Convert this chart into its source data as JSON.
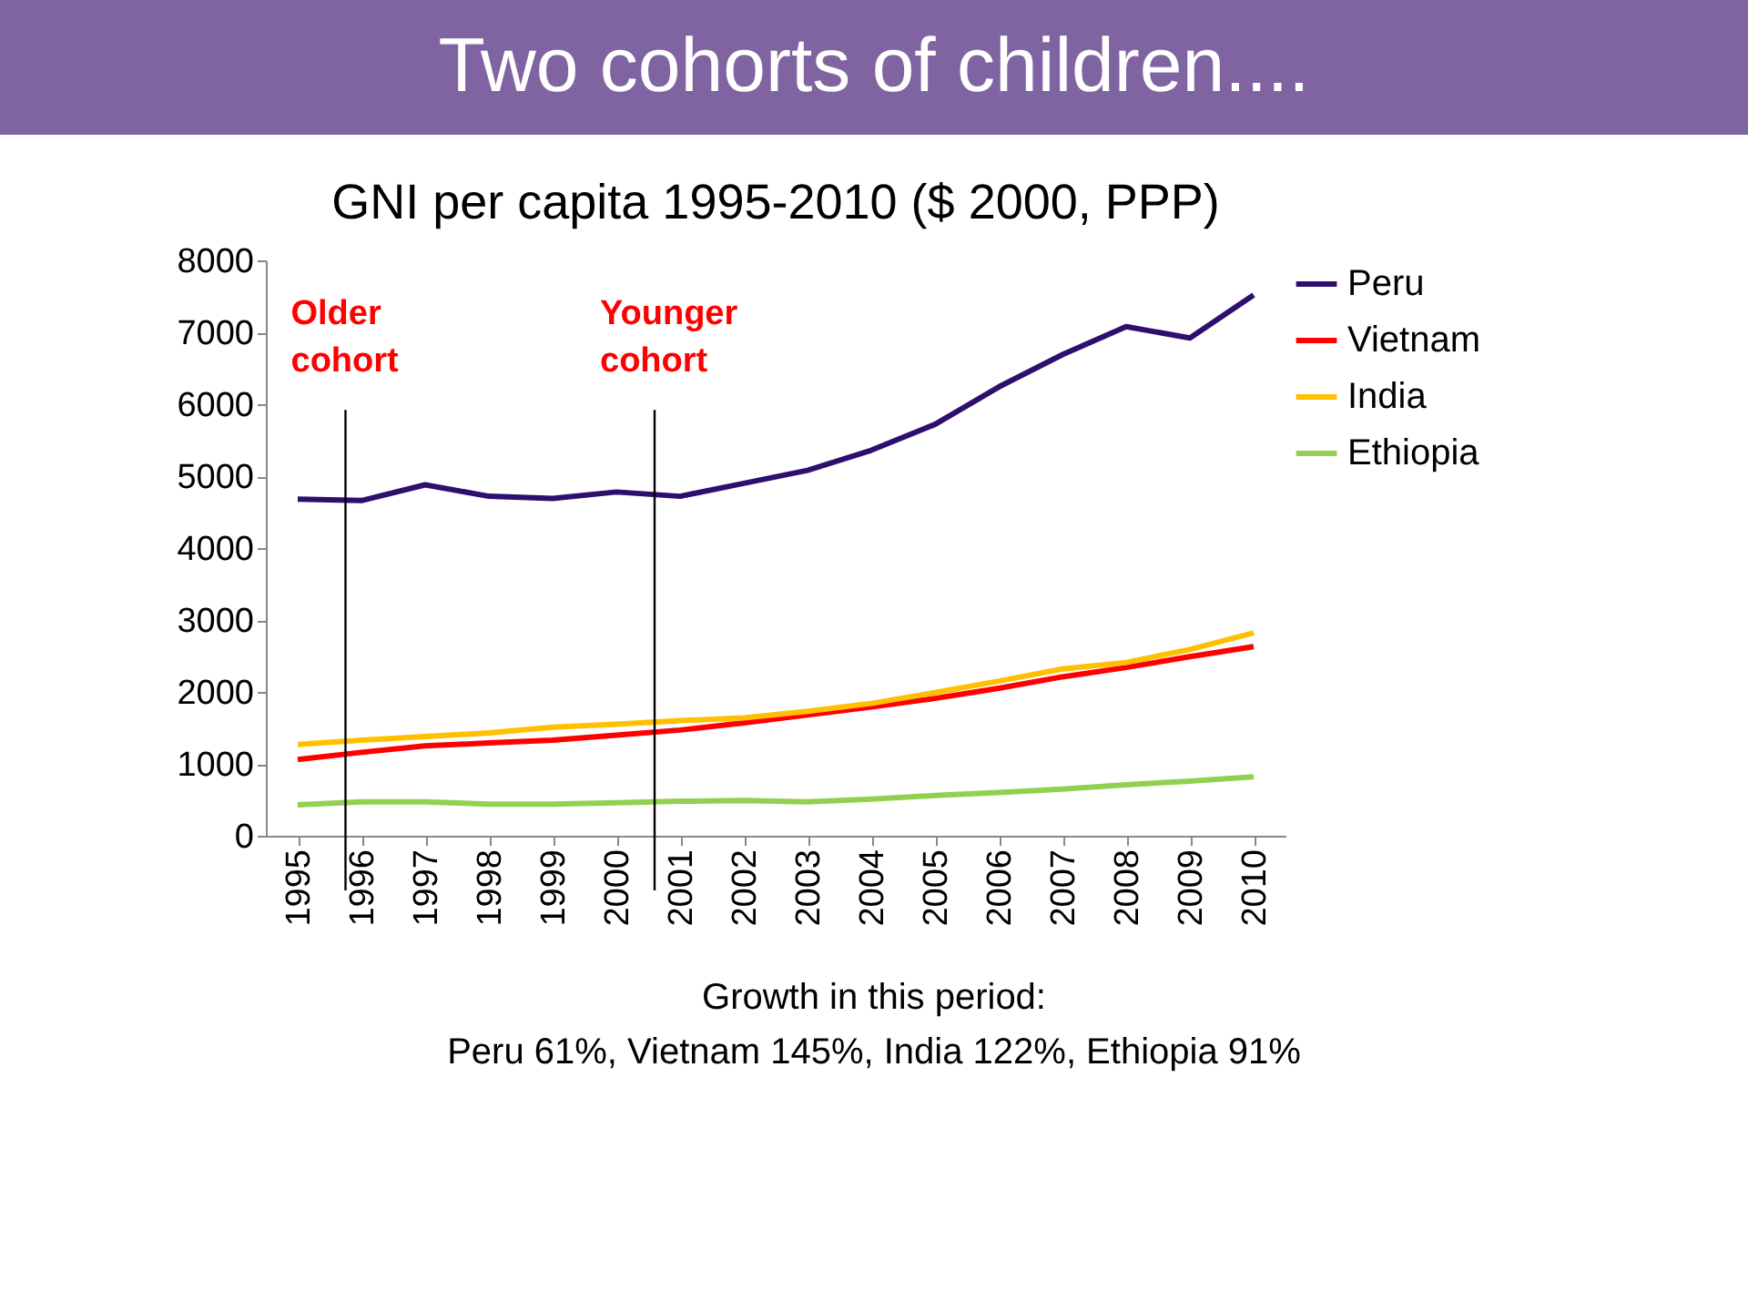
{
  "chart_data": {
    "type": "line",
    "title": "Two cohorts of children....",
    "subtitle": "GNI per capita 1995-2010 ($ 2000, PPP)",
    "x": [
      1995,
      1996,
      1997,
      1998,
      1999,
      2000,
      2001,
      2002,
      2003,
      2004,
      2005,
      2006,
      2007,
      2008,
      2009,
      2010
    ],
    "xlim": [
      1994.5,
      2010.5
    ],
    "xticks": [
      1995,
      1996,
      1997,
      1998,
      1999,
      2000,
      2001,
      2002,
      2003,
      2004,
      2005,
      2006,
      2007,
      2008,
      2009,
      2010
    ],
    "ylim": [
      0,
      8000
    ],
    "yticks": [
      0,
      1000,
      2000,
      3000,
      4000,
      5000,
      6000,
      7000,
      8000
    ],
    "series": [
      {
        "name": "Peru",
        "color": "#2e0f6e",
        "values": [
          4680,
          4660,
          4880,
          4720,
          4690,
          4780,
          4720,
          4900,
          5080,
          5360,
          5720,
          6240,
          6690,
          7080,
          6920,
          7520
        ]
      },
      {
        "name": "Vietnam",
        "color": "#ff0000",
        "values": [
          1060,
          1160,
          1250,
          1290,
          1330,
          1400,
          1470,
          1570,
          1680,
          1790,
          1910,
          2050,
          2210,
          2340,
          2490,
          2630
        ]
      },
      {
        "name": "India",
        "color": "#ffc000",
        "values": [
          1270,
          1330,
          1380,
          1430,
          1510,
          1550,
          1600,
          1640,
          1730,
          1840,
          1990,
          2150,
          2320,
          2410,
          2590,
          2820
        ]
      },
      {
        "name": "Ethiopia",
        "color": "#92d050",
        "values": [
          430,
          470,
          470,
          440,
          440,
          460,
          480,
          490,
          470,
          510,
          560,
          600,
          650,
          710,
          760,
          820
        ]
      }
    ],
    "ref_lines": [
      {
        "axis": "x",
        "value": 1995.75,
        "label": "Older cohort",
        "color": "#000000"
      },
      {
        "axis": "x",
        "value": 2000.6,
        "label": "Younger cohort",
        "color": "#000000"
      }
    ],
    "annotations": [
      "Growth in this period:",
      "Peru 61%, Vietnam 145%, India 122%, Ethiopia 91%"
    ],
    "legend": "right",
    "grid": false,
    "marker": "none",
    "line_style": "solid"
  }
}
